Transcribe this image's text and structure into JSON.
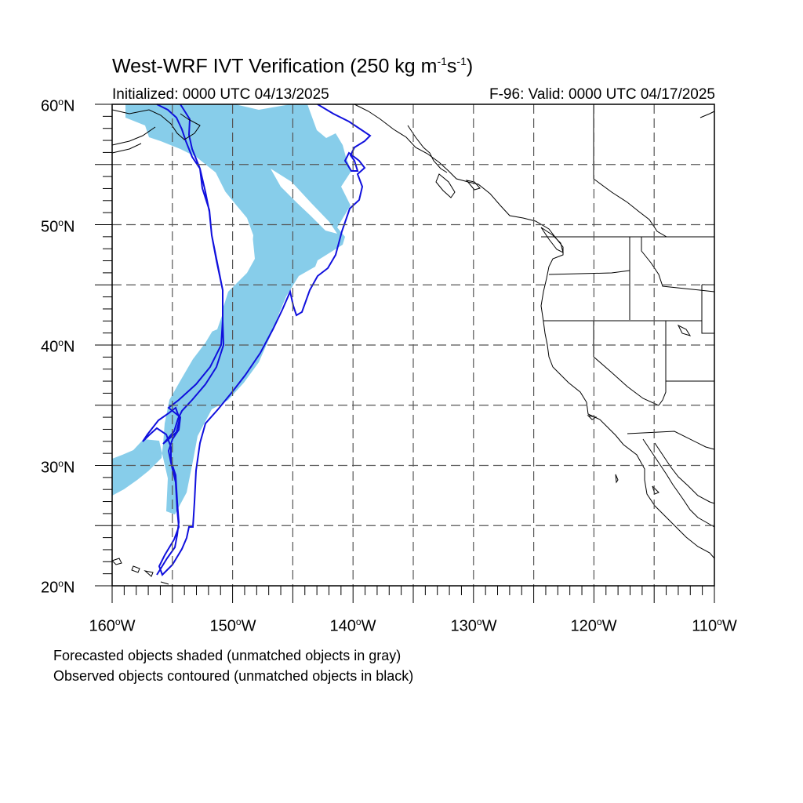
{
  "title": {
    "main": "West-WRF IVT Verification (250 kg m",
    "exp1": "-1",
    "mid": "s",
    "exp2": "-1",
    "close": ")"
  },
  "subtitle_left": "Initialized: 0000 UTC 04/13/2025",
  "subtitle_right": "F-96: Valid: 0000 UTC 04/17/2025",
  "lat_labels": [
    {
      "text": "60",
      "hemi": "N"
    },
    {
      "text": "50",
      "hemi": "N"
    },
    {
      "text": "40",
      "hemi": "N"
    },
    {
      "text": "30",
      "hemi": "N"
    },
    {
      "text": "20",
      "hemi": "N"
    }
  ],
  "lon_labels": [
    {
      "text": "160",
      "hemi": "W"
    },
    {
      "text": "150",
      "hemi": "W"
    },
    {
      "text": "140",
      "hemi": "W"
    },
    {
      "text": "130",
      "hemi": "W"
    },
    {
      "text": "120",
      "hemi": "W"
    },
    {
      "text": "110",
      "hemi": "W"
    }
  ],
  "degree_symbol": "o",
  "notes": [
    "Forecasted objects shaded (unmatched objects in gray)",
    "Observed objects contoured (unmatched objects in black)"
  ],
  "map": {
    "lon_range": [
      -160,
      -110
    ],
    "lat_range": [
      20,
      60
    ],
    "grid_spacing_deg": 5,
    "forecast_fill_color": "#87cdea",
    "observed_contour_color": "#1010dd",
    "coast_color": "#000000",
    "grid_color": "#555555"
  }
}
